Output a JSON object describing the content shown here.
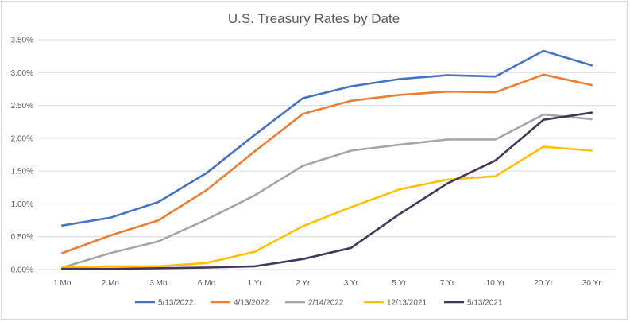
{
  "chart_data": {
    "type": "line",
    "title": "U.S. Treasury Rates by Date",
    "xlabel": "",
    "ylabel": "",
    "categories": [
      "1 Mo",
      "2 Mo",
      "3 Mo",
      "6 Mo",
      "1 Yr",
      "2 Yr",
      "3 Yr",
      "5 Yr",
      "7 Yr",
      "10 Yr",
      "20 Yr",
      "30 Yr"
    ],
    "ylim": [
      0,
      3.5
    ],
    "yticks": [
      "0.00%",
      "0.50%",
      "1.00%",
      "1.50%",
      "2.00%",
      "2.50%",
      "3.00%",
      "3.50%"
    ],
    "grid": true,
    "legend_position": "bottom",
    "series": [
      {
        "name": "5/13/2022",
        "color": "#4472C4",
        "values": [
          0.67,
          0.79,
          1.03,
          1.47,
          2.05,
          2.61,
          2.79,
          2.9,
          2.96,
          2.94,
          3.33,
          3.11
        ]
      },
      {
        "name": "4/13/2022",
        "color": "#ED7D31",
        "values": [
          0.25,
          0.52,
          0.75,
          1.21,
          1.8,
          2.37,
          2.57,
          2.66,
          2.71,
          2.7,
          2.97,
          2.81
        ]
      },
      {
        "name": "2/14/2022",
        "color": "#A5A5A5",
        "values": [
          0.03,
          0.25,
          0.43,
          0.76,
          1.13,
          1.58,
          1.81,
          1.9,
          1.98,
          1.98,
          2.36,
          2.29
        ]
      },
      {
        "name": "12/13/2021",
        "color": "#FFC000",
        "values": [
          0.03,
          0.05,
          0.05,
          0.1,
          0.27,
          0.66,
          0.95,
          1.22,
          1.37,
          1.42,
          1.87,
          1.81
        ]
      },
      {
        "name": "5/13/2021",
        "color": "#44355B",
        "values": [
          0.01,
          0.01,
          0.02,
          0.03,
          0.05,
          0.16,
          0.33,
          0.84,
          1.31,
          1.66,
          2.28,
          2.39
        ]
      }
    ]
  }
}
